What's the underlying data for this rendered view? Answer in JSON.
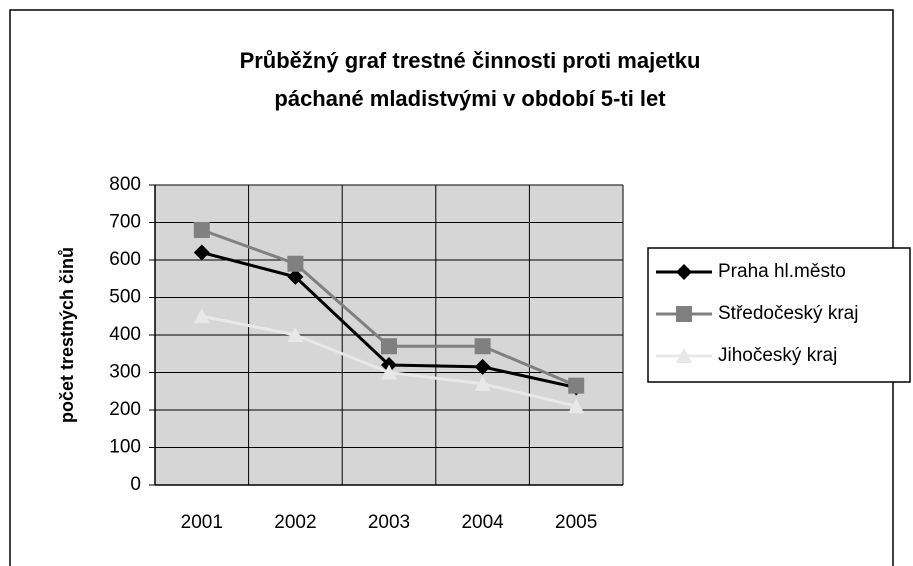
{
  "chart_data": {
    "type": "line",
    "title": [
      "Průběžný graf trestné činnosti proti majetku",
      "páchané mladistvými v období 5-ti let"
    ],
    "y_label": "počet trestných činů",
    "categories": [
      "2001",
      "2002",
      "2003",
      "2004",
      "2005"
    ],
    "series": [
      {
        "name": "Praha hl.město",
        "color": "#000000",
        "marker": "diamond",
        "values": [
          620,
          555,
          320,
          315,
          260
        ]
      },
      {
        "name": "Středočeský kraj",
        "color": "#808080",
        "marker": "square",
        "values": [
          680,
          590,
          370,
          370,
          265
        ]
      },
      {
        "name": "Jihočeský kraj",
        "color": "#e8e8e8",
        "marker": "triangle",
        "values": [
          450,
          400,
          300,
          270,
          210
        ]
      }
    ],
    "ylim": [
      0,
      800
    ],
    "yticks": [
      0,
      100,
      200,
      300,
      400,
      500,
      600,
      700,
      800
    ],
    "grid": true,
    "legend": "right"
  }
}
